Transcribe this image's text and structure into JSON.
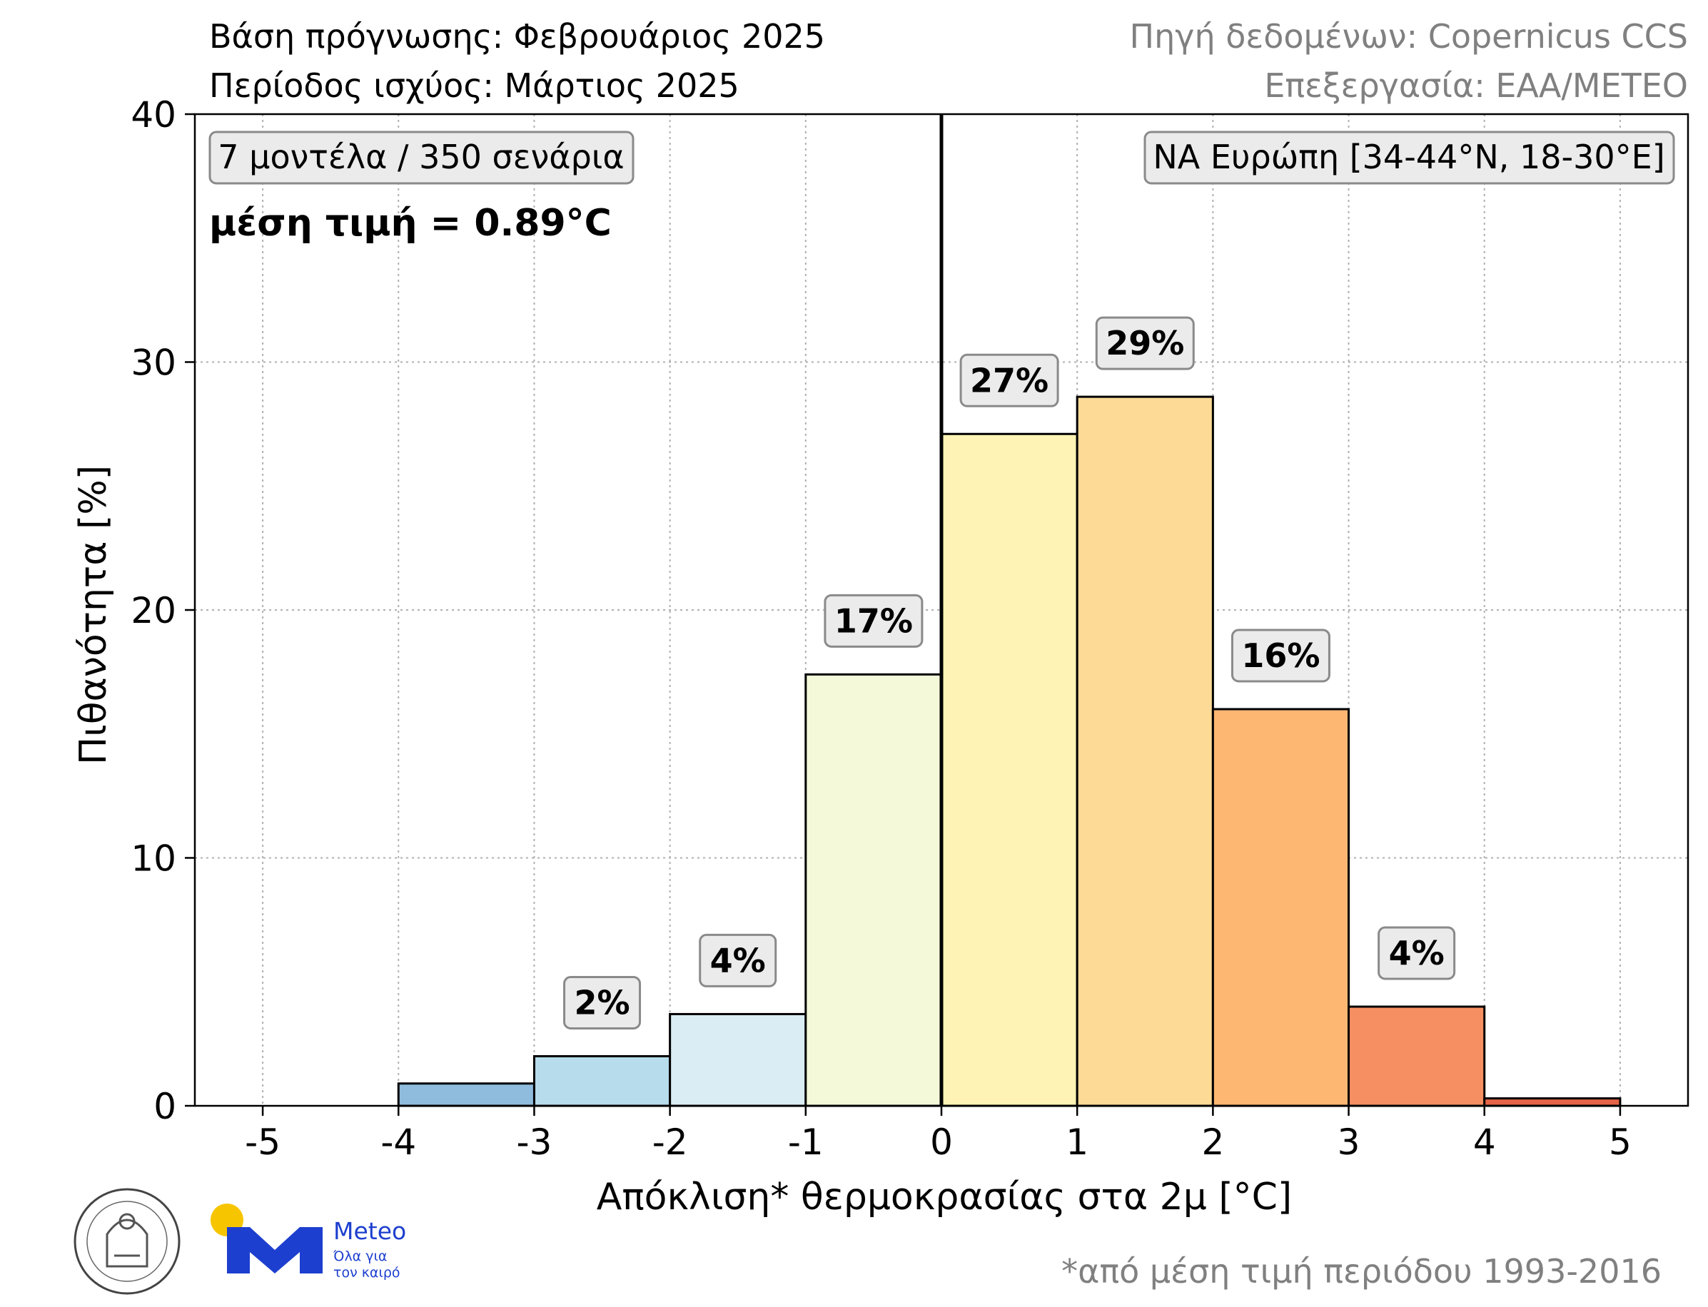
{
  "header": {
    "forecast_base": "Βάση πρόγνωσης: Φεβρουάριος 2025",
    "valid_period": "Περίοδος ισχύος: Μάρτιος 2025",
    "data_source": "Πηγή δεδομένων: Copernicus CCS",
    "processing": "Επεξεργασία: ΕΑΑ/ΜΕΤΕΟ"
  },
  "annotations": {
    "ensemble": "7 μοντέλα / 350 σενάρια",
    "mean": "μέση τιμή = 0.89°C",
    "region": "ΝΑ Ευρώπη [34-44°N, 18-30°E]"
  },
  "footer": {
    "footnote": "*από μέση τιμή περιόδου 1993-2016",
    "meteo_brand": "Meteo",
    "meteo_slogan_line1": "Όλα για",
    "meteo_slogan_line2": "τον καιρό",
    "noa_logo_text": "ΕΘΝΙΚΟΝ ΑΣΤΕΡΟΣΚΟΠΕΙΟΝ ΑΘΗΝΩΝ · NATIONAL OBSERVATORY OF ATHENS"
  },
  "chart_data": {
    "type": "bar",
    "xlabel": "Απόκλιση* θερμοκρασίας στα 2μ [°C]",
    "ylabel": "Πιθανότητα [%]",
    "xlim": [
      -5.5,
      5.5
    ],
    "ylim": [
      0,
      40
    ],
    "xticks": [
      -5,
      -4,
      -3,
      -2,
      -1,
      0,
      1,
      2,
      3,
      4,
      5
    ],
    "yticks": [
      0,
      10,
      20,
      30,
      40
    ],
    "grid": true,
    "mean_line_x": 0,
    "bins": [
      {
        "from": -4,
        "to": -3,
        "value": 0.9,
        "label": "",
        "color": "#8fbcdc"
      },
      {
        "from": -3,
        "to": -2,
        "value": 2.0,
        "label": "2%",
        "color": "#b7dceb"
      },
      {
        "from": -2,
        "to": -1,
        "value": 3.7,
        "label": "4%",
        "color": "#dbedf4"
      },
      {
        "from": -1,
        "to": 0,
        "value": 17.4,
        "label": "17%",
        "color": "#f4f9d9"
      },
      {
        "from": 0,
        "to": 1,
        "value": 27.1,
        "label": "27%",
        "color": "#fef3b5"
      },
      {
        "from": 1,
        "to": 2,
        "value": 28.6,
        "label": "29%",
        "color": "#fddb97"
      },
      {
        "from": 2,
        "to": 3,
        "value": 16.0,
        "label": "16%",
        "color": "#fdb772"
      },
      {
        "from": 3,
        "to": 4,
        "value": 4.0,
        "label": "4%",
        "color": "#f68f62"
      },
      {
        "from": 4,
        "to": 5,
        "value": 0.3,
        "label": "",
        "color": "#e56447"
      }
    ]
  }
}
